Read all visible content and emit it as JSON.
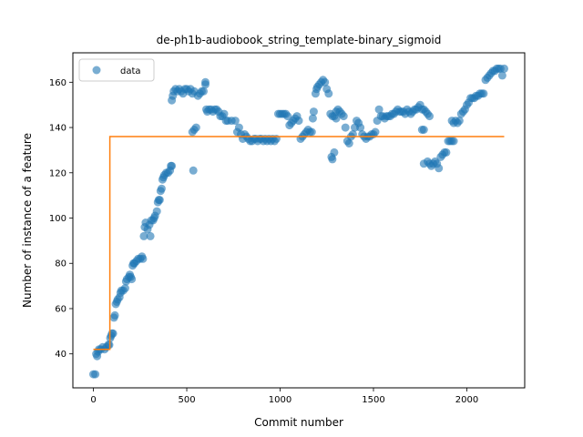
{
  "chart_data": {
    "type": "scatter",
    "title": "de-ph1b-audiobook_string_template-binary_sigmoid",
    "xlabel": "Commit number",
    "ylabel": "Number of instance of a feature",
    "xlim": [
      -110,
      2310
    ],
    "ylim": [
      25,
      173
    ],
    "xticks": [
      0,
      500,
      1000,
      1500,
      2000
    ],
    "yticks": [
      40,
      60,
      80,
      100,
      120,
      140,
      160
    ],
    "grid": false,
    "legend": {
      "placement": "upper-left",
      "entries": [
        "data"
      ]
    },
    "colors": {
      "data": "#1f77b4",
      "fit": "#ff7f0e"
    },
    "series": [
      {
        "name": "data",
        "kind": "scatter",
        "points": [
          [
            0,
            31
          ],
          [
            10,
            31
          ],
          [
            15,
            40
          ],
          [
            20,
            39
          ],
          [
            25,
            41
          ],
          [
            30,
            42
          ],
          [
            40,
            42
          ],
          [
            50,
            43
          ],
          [
            60,
            42
          ],
          [
            70,
            43
          ],
          [
            80,
            44
          ],
          [
            85,
            44
          ],
          [
            90,
            47
          ],
          [
            95,
            48
          ],
          [
            100,
            49
          ],
          [
            105,
            49
          ],
          [
            110,
            56
          ],
          [
            115,
            57
          ],
          [
            120,
            62
          ],
          [
            125,
            63
          ],
          [
            130,
            64
          ],
          [
            140,
            65
          ],
          [
            145,
            67
          ],
          [
            150,
            68
          ],
          [
            160,
            68
          ],
          [
            170,
            69
          ],
          [
            175,
            72
          ],
          [
            180,
            73
          ],
          [
            190,
            74
          ],
          [
            195,
            75
          ],
          [
            200,
            74
          ],
          [
            205,
            73
          ],
          [
            210,
            79
          ],
          [
            215,
            80
          ],
          [
            220,
            80
          ],
          [
            230,
            81
          ],
          [
            240,
            82
          ],
          [
            250,
            82
          ],
          [
            260,
            83
          ],
          [
            265,
            82
          ],
          [
            270,
            92
          ],
          [
            275,
            96
          ],
          [
            280,
            98
          ],
          [
            290,
            95
          ],
          [
            300,
            97
          ],
          [
            305,
            92
          ],
          [
            310,
            99
          ],
          [
            320,
            99
          ],
          [
            325,
            100
          ],
          [
            330,
            101
          ],
          [
            340,
            103
          ],
          [
            345,
            107
          ],
          [
            350,
            108
          ],
          [
            355,
            108
          ],
          [
            360,
            112
          ],
          [
            365,
            113
          ],
          [
            370,
            117
          ],
          [
            375,
            118
          ],
          [
            380,
            119
          ],
          [
            390,
            120
          ],
          [
            400,
            120
          ],
          [
            410,
            121
          ],
          [
            415,
            123
          ],
          [
            420,
            123
          ],
          [
            420,
            152
          ],
          [
            425,
            154
          ],
          [
            430,
            156
          ],
          [
            440,
            157
          ],
          [
            450,
            156
          ],
          [
            460,
            157
          ],
          [
            470,
            156
          ],
          [
            480,
            155
          ],
          [
            490,
            157
          ],
          [
            500,
            157
          ],
          [
            510,
            156
          ],
          [
            520,
            157
          ],
          [
            530,
            155
          ],
          [
            540,
            156
          ],
          [
            535,
            121
          ],
          [
            530,
            138
          ],
          [
            540,
            139
          ],
          [
            550,
            140
          ],
          [
            560,
            154
          ],
          [
            570,
            155
          ],
          [
            580,
            156
          ],
          [
            590,
            156
          ],
          [
            600,
            159
          ],
          [
            600,
            160
          ],
          [
            605,
            148
          ],
          [
            610,
            147
          ],
          [
            620,
            148
          ],
          [
            630,
            148
          ],
          [
            640,
            147
          ],
          [
            650,
            148
          ],
          [
            660,
            148
          ],
          [
            670,
            147
          ],
          [
            680,
            145
          ],
          [
            690,
            145
          ],
          [
            700,
            146
          ],
          [
            710,
            143
          ],
          [
            720,
            143
          ],
          [
            740,
            143
          ],
          [
            760,
            143
          ],
          [
            770,
            138
          ],
          [
            780,
            140
          ],
          [
            790,
            137
          ],
          [
            800,
            135
          ],
          [
            810,
            137
          ],
          [
            820,
            136
          ],
          [
            830,
            135
          ],
          [
            840,
            134
          ],
          [
            850,
            134
          ],
          [
            860,
            135
          ],
          [
            870,
            135
          ],
          [
            880,
            134
          ],
          [
            890,
            135
          ],
          [
            900,
            135
          ],
          [
            910,
            134
          ],
          [
            920,
            135
          ],
          [
            930,
            134
          ],
          [
            940,
            135
          ],
          [
            950,
            134
          ],
          [
            960,
            135
          ],
          [
            970,
            134
          ],
          [
            980,
            135
          ],
          [
            990,
            146
          ],
          [
            1000,
            146
          ],
          [
            1010,
            146
          ],
          [
            1020,
            146
          ],
          [
            1030,
            146
          ],
          [
            1040,
            145
          ],
          [
            1050,
            141
          ],
          [
            1060,
            142
          ],
          [
            1070,
            143
          ],
          [
            1080,
            144
          ],
          [
            1090,
            145
          ],
          [
            1100,
            143
          ],
          [
            1110,
            135
          ],
          [
            1120,
            136
          ],
          [
            1130,
            137
          ],
          [
            1140,
            138
          ],
          [
            1150,
            139
          ],
          [
            1160,
            138
          ],
          [
            1170,
            138
          ],
          [
            1175,
            144
          ],
          [
            1180,
            147
          ],
          [
            1190,
            155
          ],
          [
            1195,
            157
          ],
          [
            1200,
            158
          ],
          [
            1210,
            159
          ],
          [
            1220,
            160
          ],
          [
            1230,
            161
          ],
          [
            1240,
            160
          ],
          [
            1250,
            157
          ],
          [
            1260,
            155
          ],
          [
            1270,
            146
          ],
          [
            1280,
            145
          ],
          [
            1290,
            145
          ],
          [
            1300,
            144
          ],
          [
            1275,
            127
          ],
          [
            1280,
            126
          ],
          [
            1290,
            129
          ],
          [
            1300,
            147
          ],
          [
            1310,
            148
          ],
          [
            1320,
            147
          ],
          [
            1330,
            146
          ],
          [
            1340,
            145
          ],
          [
            1350,
            140
          ],
          [
            1360,
            134
          ],
          [
            1370,
            133
          ],
          [
            1380,
            136
          ],
          [
            1390,
            137
          ],
          [
            1400,
            140
          ],
          [
            1410,
            143
          ],
          [
            1420,
            142
          ],
          [
            1430,
            140
          ],
          [
            1440,
            137
          ],
          [
            1450,
            136
          ],
          [
            1460,
            135
          ],
          [
            1470,
            136
          ],
          [
            1480,
            136
          ],
          [
            1490,
            137
          ],
          [
            1500,
            137
          ],
          [
            1510,
            138
          ],
          [
            1520,
            143
          ],
          [
            1530,
            148
          ],
          [
            1540,
            145
          ],
          [
            1550,
            145
          ],
          [
            1560,
            144
          ],
          [
            1570,
            145
          ],
          [
            1580,
            145
          ],
          [
            1590,
            145
          ],
          [
            1600,
            146
          ],
          [
            1610,
            146
          ],
          [
            1620,
            147
          ],
          [
            1630,
            148
          ],
          [
            1640,
            147
          ],
          [
            1650,
            147
          ],
          [
            1660,
            147
          ],
          [
            1670,
            146
          ],
          [
            1680,
            148
          ],
          [
            1690,
            147
          ],
          [
            1700,
            146
          ],
          [
            1710,
            147
          ],
          [
            1720,
            148
          ],
          [
            1730,
            148
          ],
          [
            1740,
            149
          ],
          [
            1750,
            150
          ],
          [
            1760,
            148
          ],
          [
            1770,
            148
          ],
          [
            1780,
            147
          ],
          [
            1790,
            146
          ],
          [
            1800,
            145
          ],
          [
            1760,
            139
          ],
          [
            1770,
            139
          ],
          [
            1770,
            124
          ],
          [
            1790,
            125
          ],
          [
            1800,
            124
          ],
          [
            1810,
            123
          ],
          [
            1820,
            124
          ],
          [
            1830,
            125
          ],
          [
            1840,
            124
          ],
          [
            1850,
            122
          ],
          [
            1860,
            127
          ],
          [
            1870,
            128
          ],
          [
            1880,
            129
          ],
          [
            1890,
            129
          ],
          [
            1900,
            134
          ],
          [
            1910,
            134
          ],
          [
            1920,
            134
          ],
          [
            1930,
            134
          ],
          [
            1920,
            143
          ],
          [
            1930,
            142
          ],
          [
            1940,
            143
          ],
          [
            1950,
            142
          ],
          [
            1960,
            143
          ],
          [
            1970,
            146
          ],
          [
            1980,
            147
          ],
          [
            1990,
            148
          ],
          [
            2000,
            150
          ],
          [
            2010,
            151
          ],
          [
            2020,
            153
          ],
          [
            2030,
            153
          ],
          [
            2040,
            153
          ],
          [
            2050,
            154
          ],
          [
            2060,
            154
          ],
          [
            2070,
            155
          ],
          [
            2080,
            155
          ],
          [
            2090,
            155
          ],
          [
            2100,
            161
          ],
          [
            2110,
            162
          ],
          [
            2120,
            163
          ],
          [
            2130,
            164
          ],
          [
            2140,
            165
          ],
          [
            2150,
            165
          ],
          [
            2160,
            166
          ],
          [
            2170,
            166
          ],
          [
            2180,
            166
          ],
          [
            2190,
            163
          ],
          [
            2200,
            166
          ]
        ]
      },
      {
        "name": "",
        "kind": "line",
        "points": [
          [
            0,
            42
          ],
          [
            88,
            42
          ],
          [
            88,
            136
          ],
          [
            2200,
            136
          ]
        ]
      }
    ]
  }
}
